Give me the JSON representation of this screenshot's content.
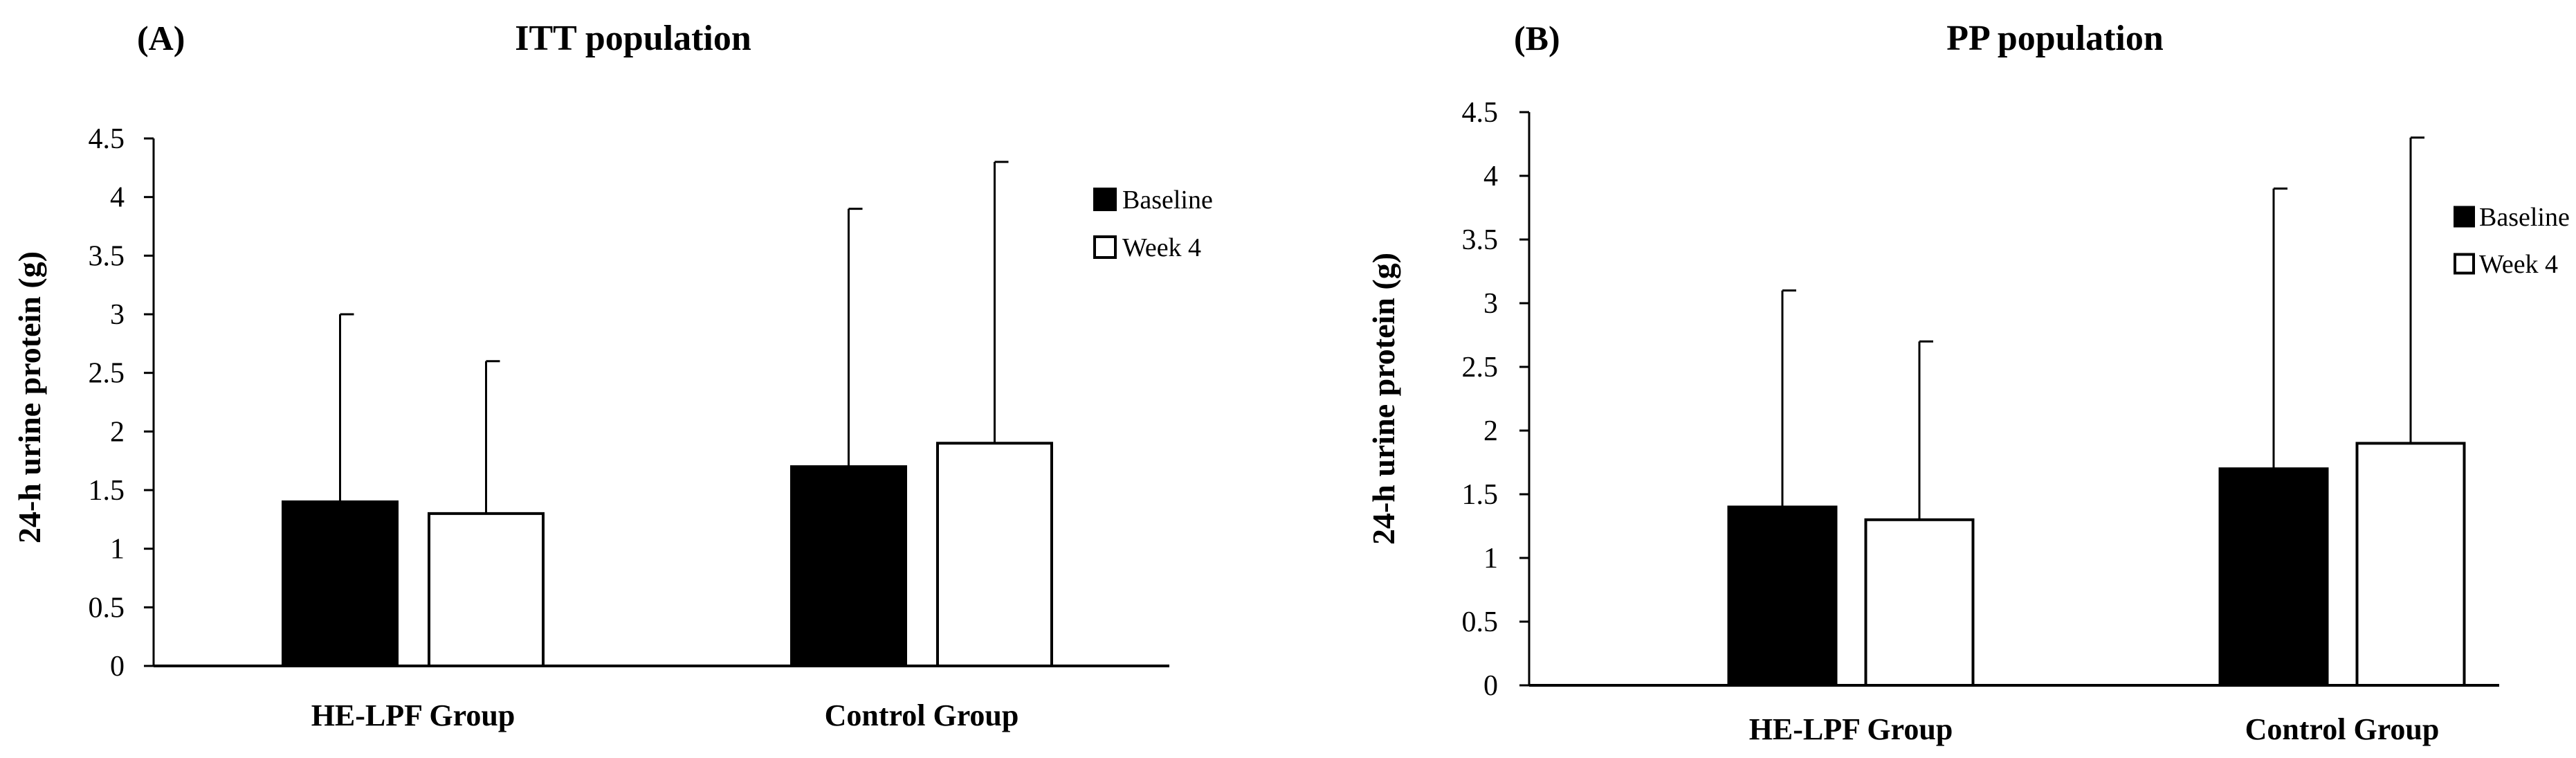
{
  "chart_data": [
    {
      "type": "bar",
      "panel_label": "(A)",
      "title": "ITT population",
      "xlabel": "",
      "ylabel": "24-h urine protein (g)",
      "ylim": [
        0,
        4.5
      ],
      "yticks": [
        "0",
        "0.5",
        "1",
        "1.5",
        "2",
        "2.5",
        "3",
        "3.5",
        "4",
        "4.5"
      ],
      "categories": [
        "HE-LPF Group",
        "Control Group"
      ],
      "series": [
        {
          "name": "Baseline",
          "values": [
            1.4,
            1.7
          ],
          "error_upper": [
            3.0,
            3.9
          ],
          "fill": "#000000"
        },
        {
          "name": "Week 4",
          "values": [
            1.3,
            1.9
          ],
          "error_upper": [
            2.6,
            4.3
          ],
          "fill": "#ffffff"
        }
      ],
      "legend_position": "top-right",
      "grid": false
    },
    {
      "type": "bar",
      "panel_label": "(B)",
      "title": "PP population",
      "xlabel": "",
      "ylabel": "24-h urine protein (g)",
      "ylim": [
        0,
        4.5
      ],
      "yticks": [
        "0",
        "0.5",
        "1",
        "1.5",
        "2",
        "2.5",
        "3",
        "3.5",
        "4",
        "4.5"
      ],
      "categories": [
        "HE-LPF Group",
        "Control Group"
      ],
      "series": [
        {
          "name": "Baseline",
          "values": [
            1.4,
            1.7
          ],
          "error_upper": [
            3.1,
            3.9
          ],
          "fill": "#000000"
        },
        {
          "name": "Week 4",
          "values": [
            1.3,
            1.9
          ],
          "error_upper": [
            2.7,
            4.3
          ],
          "fill": "#ffffff"
        }
      ],
      "legend_position": "top-right",
      "grid": false
    }
  ]
}
